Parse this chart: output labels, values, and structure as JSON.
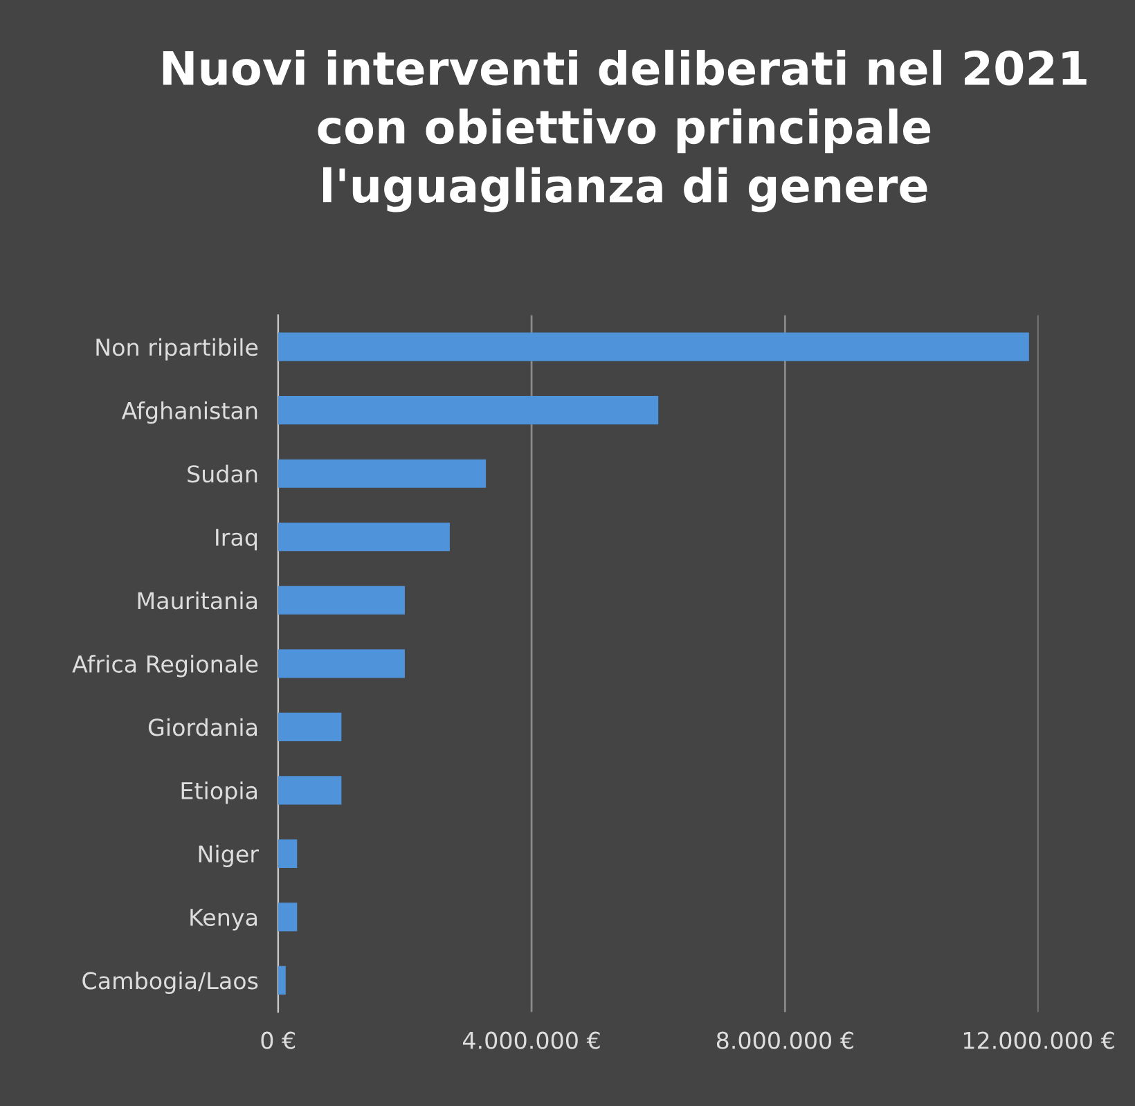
{
  "chart_data": {
    "type": "bar",
    "orientation": "horizontal",
    "title": "Nuovi interventi deliberati nel 2021\ncon obiettivo principale\nl'uguaglianza di genere",
    "categories": [
      "Non ripartibile",
      "Afghanistan",
      "Sudan",
      "Iraq",
      "Mauritania",
      "Africa Regionale",
      "Giordania",
      "Etiopia",
      "Niger",
      "Kenya",
      "Cambogia/Laos"
    ],
    "values": [
      11850000,
      6000000,
      3280000,
      2710000,
      2000000,
      2000000,
      1000000,
      1000000,
      300000,
      300000,
      120000
    ],
    "color": "#4f94db",
    "xlim": [
      0,
      12000000
    ],
    "xticks": [
      {
        "value": 0,
        "label": "0 €"
      },
      {
        "value": 4000000,
        "label": "4.000.000 €"
      },
      {
        "value": 8000000,
        "label": "8.000.000 €"
      },
      {
        "value": 12000000,
        "label": "12.000.000 €"
      }
    ],
    "grid": "x"
  }
}
